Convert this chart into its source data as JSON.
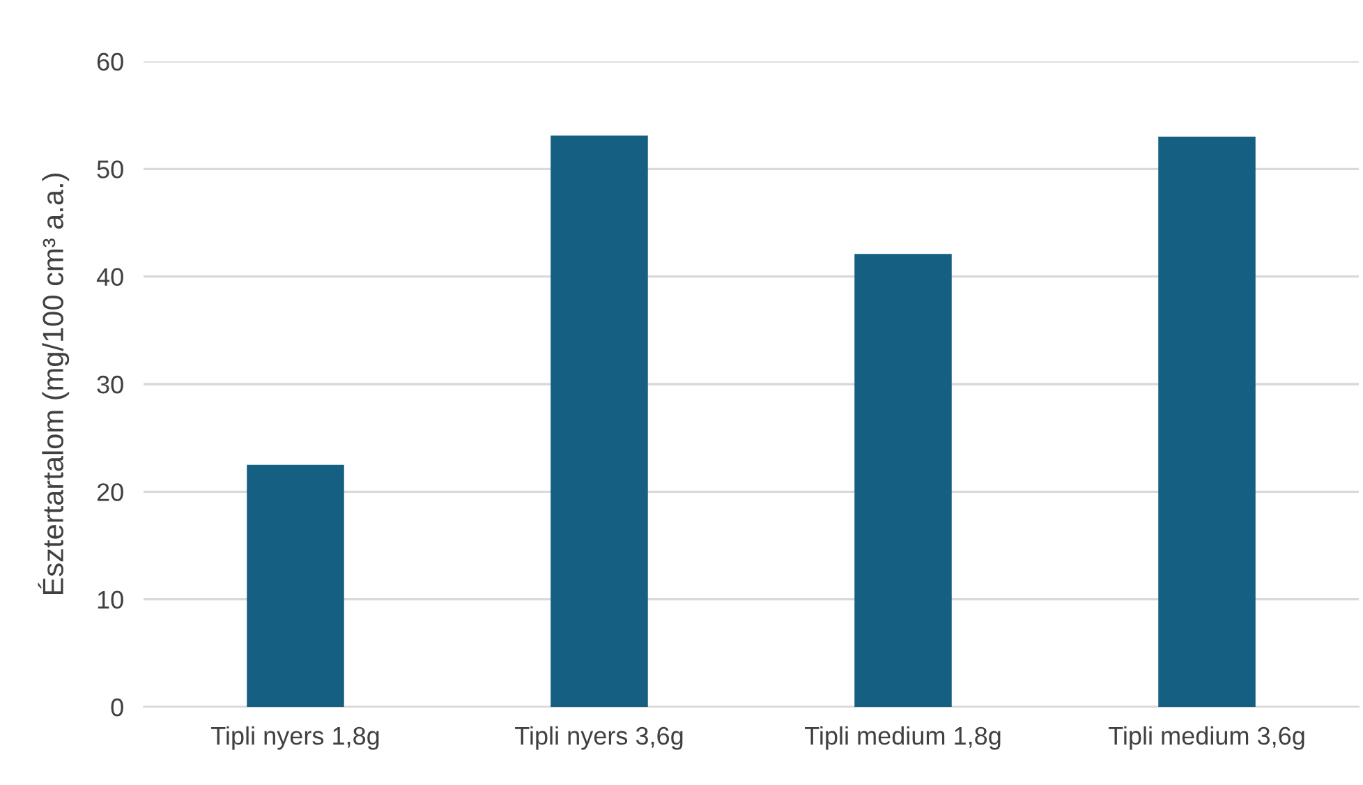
{
  "chart_data": {
    "type": "bar",
    "ylabel": "Észtertartalom (mg/100 cm³ a.a.)",
    "categories": [
      "Tipli nyers 1,8g",
      "Tipli nyers 3,6g",
      "Tipli medium 1,8g",
      "Tipli medium 3,6g"
    ],
    "values": [
      22.5,
      53.1,
      42.1,
      53.0
    ],
    "color": "#156082",
    "ylim": [
      0,
      60
    ],
    "yticks": [
      0,
      10,
      20,
      30,
      40,
      50,
      60
    ],
    "grid": "y",
    "legend": false
  }
}
